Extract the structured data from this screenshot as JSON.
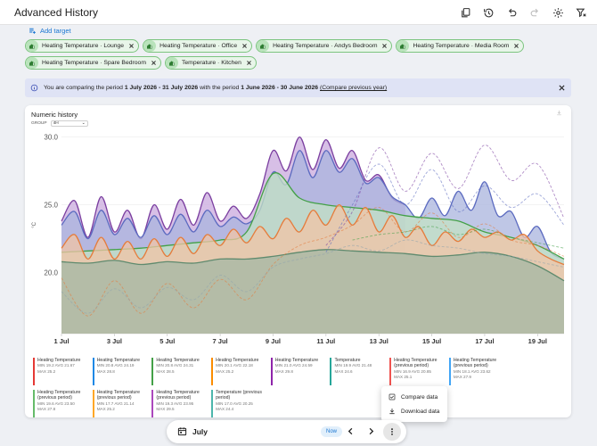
{
  "header": {
    "title": "Advanced History"
  },
  "add_target": {
    "label": "Add target"
  },
  "targets": [
    "Heating Temperature · Lounge",
    "Heating Temperature · Office",
    "Heating Temperature · Andys Bedroom",
    "Heating Temperature · Media Room",
    "Heating Temperature · Spare Bedroom",
    "Temperature · Kitchen"
  ],
  "alert": {
    "text1": "You are comparing the period ",
    "period_current": "1 July 2026 - 31 July 2026",
    "text2": " with the period ",
    "period_previous": "1 June 2026 - 30 June 2026",
    "link": "(Compare previous year)"
  },
  "card": {
    "title": "Numeric history",
    "group_label": "GROUP",
    "group_value": "4H"
  },
  "chart_data": {
    "type": "area",
    "ylabel": "°C",
    "y_ticks": [
      20.0,
      25.0,
      30.0
    ],
    "y_tick_labels": [
      "20.0",
      "25.0",
      "30.0"
    ],
    "ylim": [
      15.5,
      30.5
    ],
    "x_tick_labels": [
      "1 Jul",
      "3 Jul",
      "5 Jul",
      "7 Jul",
      "9 Jul",
      "11 Jul",
      "13 Jul",
      "15 Jul",
      "17 Jul",
      "19 Jul"
    ],
    "x_ticks_day": [
      1,
      3,
      5,
      7,
      9,
      11,
      13,
      15,
      17,
      19
    ],
    "xlim_day": [
      1,
      20
    ],
    "series": [
      {
        "color": "#7b3fa0",
        "fill": "#c9a9dd",
        "days": [
          1,
          1.5,
          2,
          2.5,
          3,
          3.5,
          4,
          4.5,
          5,
          5.5,
          6,
          6.5,
          7,
          7.5,
          8,
          8.5,
          9,
          9.5,
          10,
          10.5,
          11,
          11.5,
          12,
          12.5,
          13,
          13.5,
          14
        ],
        "values": [
          23.8,
          25.3,
          22.6,
          25.6,
          23.0,
          24.6,
          22.5,
          25.0,
          23.2,
          25.4,
          23.5,
          25.9,
          23.8,
          24.9,
          24.0,
          25.8,
          29.0,
          27.5,
          30.0,
          27.6,
          29.8,
          27.7,
          29.0,
          26.8,
          27.2,
          25.5,
          25.0
        ]
      },
      {
        "color": "#5c6bc0",
        "fill": "#aab4dd",
        "days": [
          1,
          1.5,
          2,
          2.5,
          3,
          3.5,
          4,
          4.5,
          5,
          5.5,
          6,
          6.5,
          7,
          7.5,
          8,
          8.5,
          9,
          9.5,
          10,
          10.5,
          11,
          11.5,
          12,
          12.5,
          13,
          13.5,
          14,
          14.5,
          15,
          15.5,
          16,
          16.5,
          17,
          17.5,
          18,
          18.5,
          19,
          19.5,
          20
        ],
        "values": [
          23.5,
          24.5,
          22.5,
          24.6,
          22.8,
          24.0,
          22.6,
          24.2,
          22.8,
          24.3,
          23.0,
          24.6,
          23.4,
          24.1,
          23.6,
          24.6,
          27.4,
          26.5,
          29.0,
          27.0,
          29.0,
          27.4,
          28.4,
          26.6,
          27.0,
          25.6,
          25.0,
          24.0,
          25.5,
          24.2,
          26.0,
          24.6,
          26.7,
          24.2,
          24.5,
          22.6,
          23.4,
          21.5,
          21.0
        ]
      },
      {
        "color": "#43a047",
        "fill": "#c3e2c4",
        "days": [
          1,
          2,
          3,
          4,
          5,
          6,
          7,
          8,
          9,
          10,
          11,
          12,
          13,
          14,
          15,
          16,
          17,
          18,
          19,
          20
        ],
        "values": [
          21.5,
          21.6,
          21.7,
          21.8,
          22.0,
          22.2,
          22.4,
          23.0,
          27.3,
          25.5,
          25.0,
          24.8,
          24.6,
          24.2,
          24.0,
          23.8,
          23.0,
          22.6,
          22.0,
          21.0
        ]
      },
      {
        "color": "#e57c3c",
        "fill": "#f2c4a6",
        "days": [
          1,
          1.5,
          2,
          2.5,
          3,
          3.5,
          4,
          4.5,
          5,
          5.5,
          6,
          6.5,
          7,
          7.5,
          8,
          8.5,
          9,
          9.5,
          10,
          10.5,
          11,
          11.5,
          12,
          12.5,
          13,
          13.5,
          14,
          14.5,
          15,
          15.5,
          16,
          16.5,
          17,
          17.5,
          18,
          18.5,
          19,
          19.5,
          20
        ],
        "values": [
          21.8,
          22.8,
          21.0,
          22.6,
          21.0,
          22.3,
          21.0,
          22.5,
          21.2,
          22.6,
          21.4,
          22.8,
          22.0,
          23.2,
          22.2,
          23.4,
          22.5,
          24.0,
          23.0,
          24.6,
          23.5,
          25.0,
          23.5,
          24.8,
          23.0,
          24.2,
          22.6,
          23.4,
          22.0,
          23.0,
          22.3,
          23.2,
          22.6,
          23.0,
          22.4,
          22.8,
          21.6,
          21.0,
          20.6
        ]
      },
      {
        "color": "#5f8a6e",
        "fill": "#a3b7a4",
        "days": [
          1,
          2,
          3,
          4,
          5,
          6,
          7,
          8,
          9,
          10,
          11,
          12,
          13,
          14,
          15,
          16,
          17,
          18,
          19,
          20
        ],
        "values": [
          20.8,
          20.7,
          20.9,
          20.6,
          20.8,
          20.7,
          21.0,
          21.0,
          21.2,
          21.5,
          21.7,
          21.6,
          21.5,
          21.4,
          21.2,
          21.3,
          21.5,
          21.2,
          20.5,
          19.4
        ]
      }
    ],
    "previous_period": [
      {
        "color": "#7b3fa0",
        "days": [
          11,
          12,
          13,
          14,
          15,
          16,
          17,
          18,
          19,
          20
        ],
        "values": [
          22.0,
          24.5,
          29.2,
          26.0,
          28.8,
          26.2,
          29.4,
          26.8,
          28.0,
          24.0
        ]
      },
      {
        "color": "#5c6bc0",
        "days": [
          11,
          12,
          13,
          14,
          15,
          16,
          17,
          18,
          19,
          20
        ],
        "values": [
          21.5,
          25.0,
          28.0,
          25.0,
          27.6,
          24.5,
          26.4,
          24.8,
          25.8,
          23.5
        ]
      },
      {
        "color": "#43a047",
        "days": [
          12,
          13,
          14,
          15,
          16,
          17,
          18,
          19,
          20
        ],
        "values": [
          22.4,
          22.8,
          23.0,
          23.4,
          22.8,
          23.2,
          22.6,
          22.2,
          21.8
        ]
      },
      {
        "color": "#e57c3c",
        "days": [
          1,
          2,
          3,
          4,
          5,
          6,
          7,
          8,
          9,
          10,
          11,
          12,
          13,
          14,
          15,
          16,
          17,
          18,
          19,
          20
        ],
        "values": [
          19.6,
          16.8,
          19.4,
          17.0,
          19.2,
          17.4,
          19.5,
          18.0,
          20.6,
          22.0,
          22.6,
          23.5,
          24.8,
          23.0,
          24.4,
          22.6,
          23.6,
          22.4,
          22.0,
          21.2
        ]
      },
      {
        "color": "#90a4ae",
        "days": [
          1,
          2,
          3,
          4,
          5,
          6,
          7,
          8,
          9,
          10,
          11,
          12,
          13,
          14,
          15,
          16,
          17,
          18,
          19,
          20
        ],
        "values": [
          18.6,
          17.0,
          18.8,
          17.4,
          18.9,
          18.0,
          19.8,
          18.6,
          20.4,
          21.0,
          21.4,
          22.0,
          21.6,
          22.4,
          22.0,
          21.8,
          21.4,
          21.2,
          20.8,
          20.4
        ]
      }
    ]
  },
  "legend": [
    {
      "name": "Heating Temperature",
      "min": "MIN 19.2",
      "avg": "AVG 21.67",
      "max": "MAX 25.2",
      "color": "#e53935"
    },
    {
      "name": "Heating Temperature",
      "min": "MIN 20.8",
      "avg": "AVG 24.19",
      "max": "MAX 28.8",
      "color": "#1e88e5"
    },
    {
      "name": "Heating Temperature",
      "min": "MIN 20.8",
      "avg": "AVG 24.31",
      "max": "MAX 28.5",
      "color": "#43a047"
    },
    {
      "name": "Heating Temperature",
      "min": "MIN 20.1",
      "avg": "AVG 22.18",
      "max": "MAX 25.2",
      "color": "#fb8c00"
    },
    {
      "name": "Heating Temperature",
      "min": "MIN 21.0",
      "avg": "AVG 24.59",
      "max": "MAX 29.8",
      "color": "#8e24aa"
    },
    {
      "name": "Temperature",
      "min": "MIN 19.9",
      "avg": "AVG 21.48",
      "max": "MAX 24.6",
      "color": "#26a69a"
    },
    {
      "name": "Heating Temperature (previous period)",
      "min": "MIN 16.9",
      "avg": "AVG 20.85",
      "max": "MAX 25.1",
      "color": "#ef5350"
    },
    {
      "name": "Heating Temperature (previous period)",
      "min": "MIN 18.1",
      "avg": "AVG 23.62",
      "max": "MAX 27.9",
      "color": "#42a5f5"
    },
    {
      "name": "Heating Temperature (previous period)",
      "min": "MIN 19.6",
      "avg": "AVG 23.50",
      "max": "MAX 27.8",
      "color": "#66bb6a"
    },
    {
      "name": "Heating Temperature (previous period)",
      "min": "MIN 17.7",
      "avg": "AVG 21.14",
      "max": "MAX 25.2",
      "color": "#ffa726"
    },
    {
      "name": "Heating Temperature (previous period)",
      "min": "MIN 19.3",
      "avg": "AVG 23.95",
      "max": "MAX 29.5",
      "color": "#ab47bc"
    },
    {
      "name": "Temperature (previous period)",
      "min": "MIN 17.0",
      "avg": "AVG 20.25",
      "max": "MAX 24.4",
      "color": "#4db6ac"
    }
  ],
  "menu": {
    "compare": "Compare data",
    "download": "Download data"
  },
  "bottombar": {
    "month": "July",
    "now": "Now"
  }
}
